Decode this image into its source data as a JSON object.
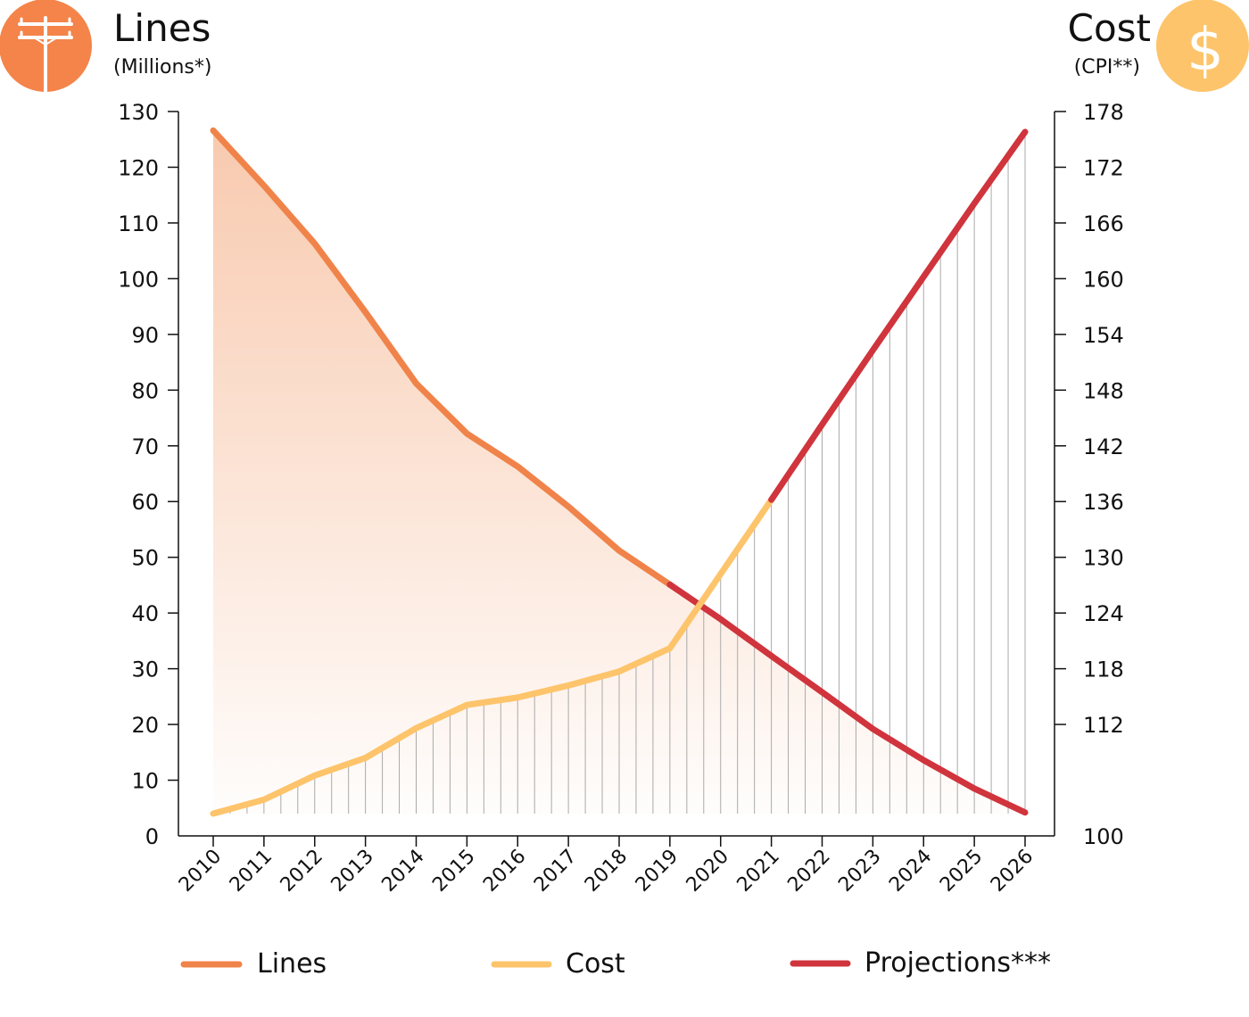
{
  "header": {
    "left_title": "Lines",
    "left_subtitle": "(Millions*)",
    "left_icon": "utility-pole-icon",
    "right_title": "Cost",
    "right_subtitle": "(CPI**)",
    "right_icon": "dollar-icon",
    "right_icon_glyph": "$"
  },
  "legend": {
    "items": [
      {
        "label": "Lines",
        "color": "#f0834a"
      },
      {
        "label": "Cost",
        "color": "#fdc46b"
      },
      {
        "label": "Projections***",
        "color": "#d0343c"
      }
    ]
  },
  "chart_data": {
    "type": "line",
    "x": [
      2010,
      2011,
      2012,
      2013,
      2014,
      2015,
      2016,
      2017,
      2018,
      2019,
      2020,
      2021,
      2022,
      2023,
      2024,
      2025,
      2026
    ],
    "y_left": {
      "label": "Lines (Millions*)",
      "range": [
        0,
        130
      ],
      "ticks": [
        0,
        10,
        20,
        30,
        40,
        50,
        60,
        70,
        80,
        90,
        100,
        110,
        120,
        130
      ]
    },
    "y_right": {
      "label": "Cost (CPI**)",
      "range": [
        100,
        178
      ],
      "ticks": [
        100,
        112,
        118,
        124,
        130,
        136,
        142,
        148,
        154,
        160,
        166,
        172,
        178
      ]
    },
    "series": [
      {
        "name": "Lines",
        "axis": "left",
        "color": "#f0834a",
        "area": true,
        "values": [
          126.6,
          116.7,
          106.3,
          94,
          81.2,
          72.2,
          66.3,
          59.1,
          51.2,
          45.1,
          38.9,
          32.3,
          25.8,
          19.2,
          13.6,
          8.5,
          4.2
        ],
        "projection_from": 2019
      },
      {
        "name": "Cost",
        "axis": "right",
        "color": "#fdc46b",
        "hatched": true,
        "values": [
          102.4,
          103.9,
          106.5,
          108.4,
          111.6,
          114.1,
          114.9,
          116.2,
          117.7,
          120.2,
          128.2,
          136.2,
          144.3,
          152.3,
          160.2,
          168.1,
          175.8
        ],
        "projection_from": 2021
      }
    ],
    "projection_color": "#d0343c",
    "grid": false
  }
}
